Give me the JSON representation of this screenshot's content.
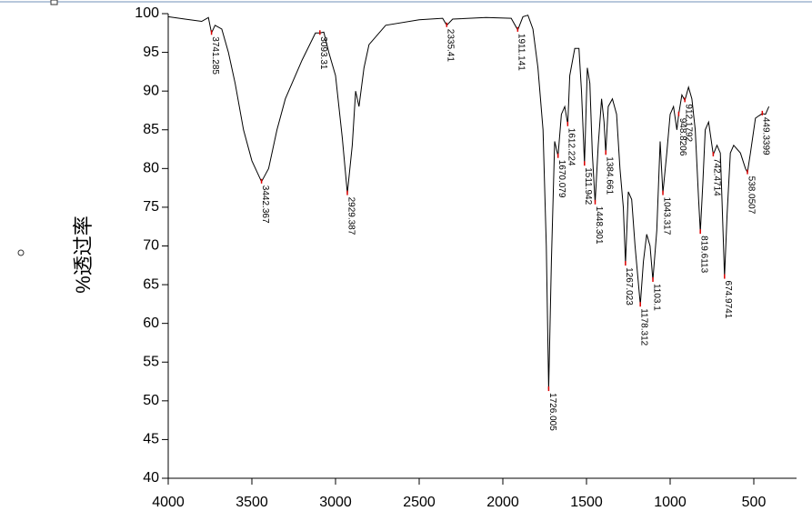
{
  "chart_data": {
    "type": "line",
    "y_label": "%透过率",
    "xlim": [
      4000,
      250
    ],
    "ylim": [
      40,
      100
    ],
    "xticks": [
      4000,
      3500,
      3000,
      2500,
      2000,
      1500,
      1000,
      500
    ],
    "yticks": [
      40,
      45,
      50,
      55,
      60,
      65,
      70,
      75,
      80,
      85,
      90,
      95,
      100
    ],
    "series": [
      {
        "color": "#000000",
        "x": [
          4000,
          3900,
          3800,
          3760,
          3741.285,
          3720,
          3680,
          3640,
          3600,
          3550,
          3500,
          3442.367,
          3400,
          3350,
          3300,
          3200,
          3120,
          3093.31,
          3070,
          3040,
          3000,
          2960,
          2929.387,
          2900,
          2880,
          2860,
          2830,
          2800,
          2700,
          2500,
          2360,
          2335.41,
          2300,
          2100,
          1950,
          1911.141,
          1880,
          1850,
          1820,
          1790,
          1760,
          1740,
          1726.005,
          1710,
          1690,
          1670.079,
          1650,
          1630,
          1612.224,
          1600,
          1570,
          1545,
          1530,
          1511.942,
          1495,
          1480,
          1465,
          1448.301,
          1430,
          1410,
          1395,
          1384.661,
          1370,
          1345,
          1320,
          1300,
          1280,
          1267.023,
          1250,
          1230,
          1210,
          1178.312,
          1160,
          1140,
          1120,
          1103.1,
          1080,
          1060,
          1043.317,
          1020,
          1000,
          980,
          960,
          948.8206,
          930,
          912.1792,
          890,
          870,
          850,
          830,
          819.6113,
          805,
          790,
          770,
          742.4714,
          720,
          700,
          690,
          674.9741,
          660,
          640,
          620,
          580,
          550,
          538.0507,
          520,
          490,
          470,
          449.3399,
          430,
          410
        ],
        "values": [
          99.6,
          99.3,
          99,
          99.5,
          97.5,
          98.5,
          98,
          95,
          91,
          85,
          81,
          78.3,
          80,
          85,
          89,
          94,
          97.5,
          97.5,
          97.6,
          95,
          92,
          84,
          76.8,
          83,
          90,
          88,
          93,
          96,
          98.5,
          99.2,
          99.4,
          98.5,
          99.3,
          99.5,
          99.4,
          97.9,
          99.6,
          99.8,
          98,
          93,
          85,
          70,
          51.5,
          68,
          83.5,
          81.6,
          87,
          88,
          85.7,
          92,
          95.5,
          95.5,
          90,
          80.6,
          93,
          91,
          82,
          75.6,
          83,
          89,
          86,
          82,
          88,
          89,
          87,
          80,
          75,
          67.7,
          77,
          76,
          70,
          62.4,
          68,
          71.5,
          70,
          65.6,
          72,
          83.5,
          76.8,
          82,
          87,
          88,
          85,
          87,
          89.5,
          88.8,
          90.5,
          89,
          85,
          76,
          71.8,
          78,
          85,
          86,
          81.8,
          83,
          82,
          76,
          66,
          74,
          82,
          83,
          82,
          80,
          79.5,
          82,
          86.5,
          86.8,
          87.1,
          87,
          88
        ]
      }
    ],
    "peaks": [
      {
        "x": 3741.285,
        "y": 97.5
      },
      {
        "x": 3442.367,
        "y": 78.3
      },
      {
        "x": 3093.31,
        "y": 97.5
      },
      {
        "x": 2929.387,
        "y": 76.8
      },
      {
        "x": 2335.41,
        "y": 98.5
      },
      {
        "x": 1911.141,
        "y": 97.9
      },
      {
        "x": 1726.005,
        "y": 51.5
      },
      {
        "x": 1670.079,
        "y": 81.6
      },
      {
        "x": 1612.224,
        "y": 85.7
      },
      {
        "x": 1511.942,
        "y": 80.6
      },
      {
        "x": 1448.301,
        "y": 75.6
      },
      {
        "x": 1384.661,
        "y": 82
      },
      {
        "x": 1267.023,
        "y": 67.7
      },
      {
        "x": 1178.312,
        "y": 62.4
      },
      {
        "x": 1103.1,
        "y": 65.6
      },
      {
        "x": 1043.317,
        "y": 76.8
      },
      {
        "x": 948.8206,
        "y": 87
      },
      {
        "x": 912.1792,
        "y": 88.8
      },
      {
        "x": 819.6113,
        "y": 71.8
      },
      {
        "x": 742.4714,
        "y": 81.8
      },
      {
        "x": 674.9741,
        "y": 66
      },
      {
        "x": 538.0507,
        "y": 79.5
      },
      {
        "x": 449.3399,
        "y": 87.1
      }
    ]
  }
}
